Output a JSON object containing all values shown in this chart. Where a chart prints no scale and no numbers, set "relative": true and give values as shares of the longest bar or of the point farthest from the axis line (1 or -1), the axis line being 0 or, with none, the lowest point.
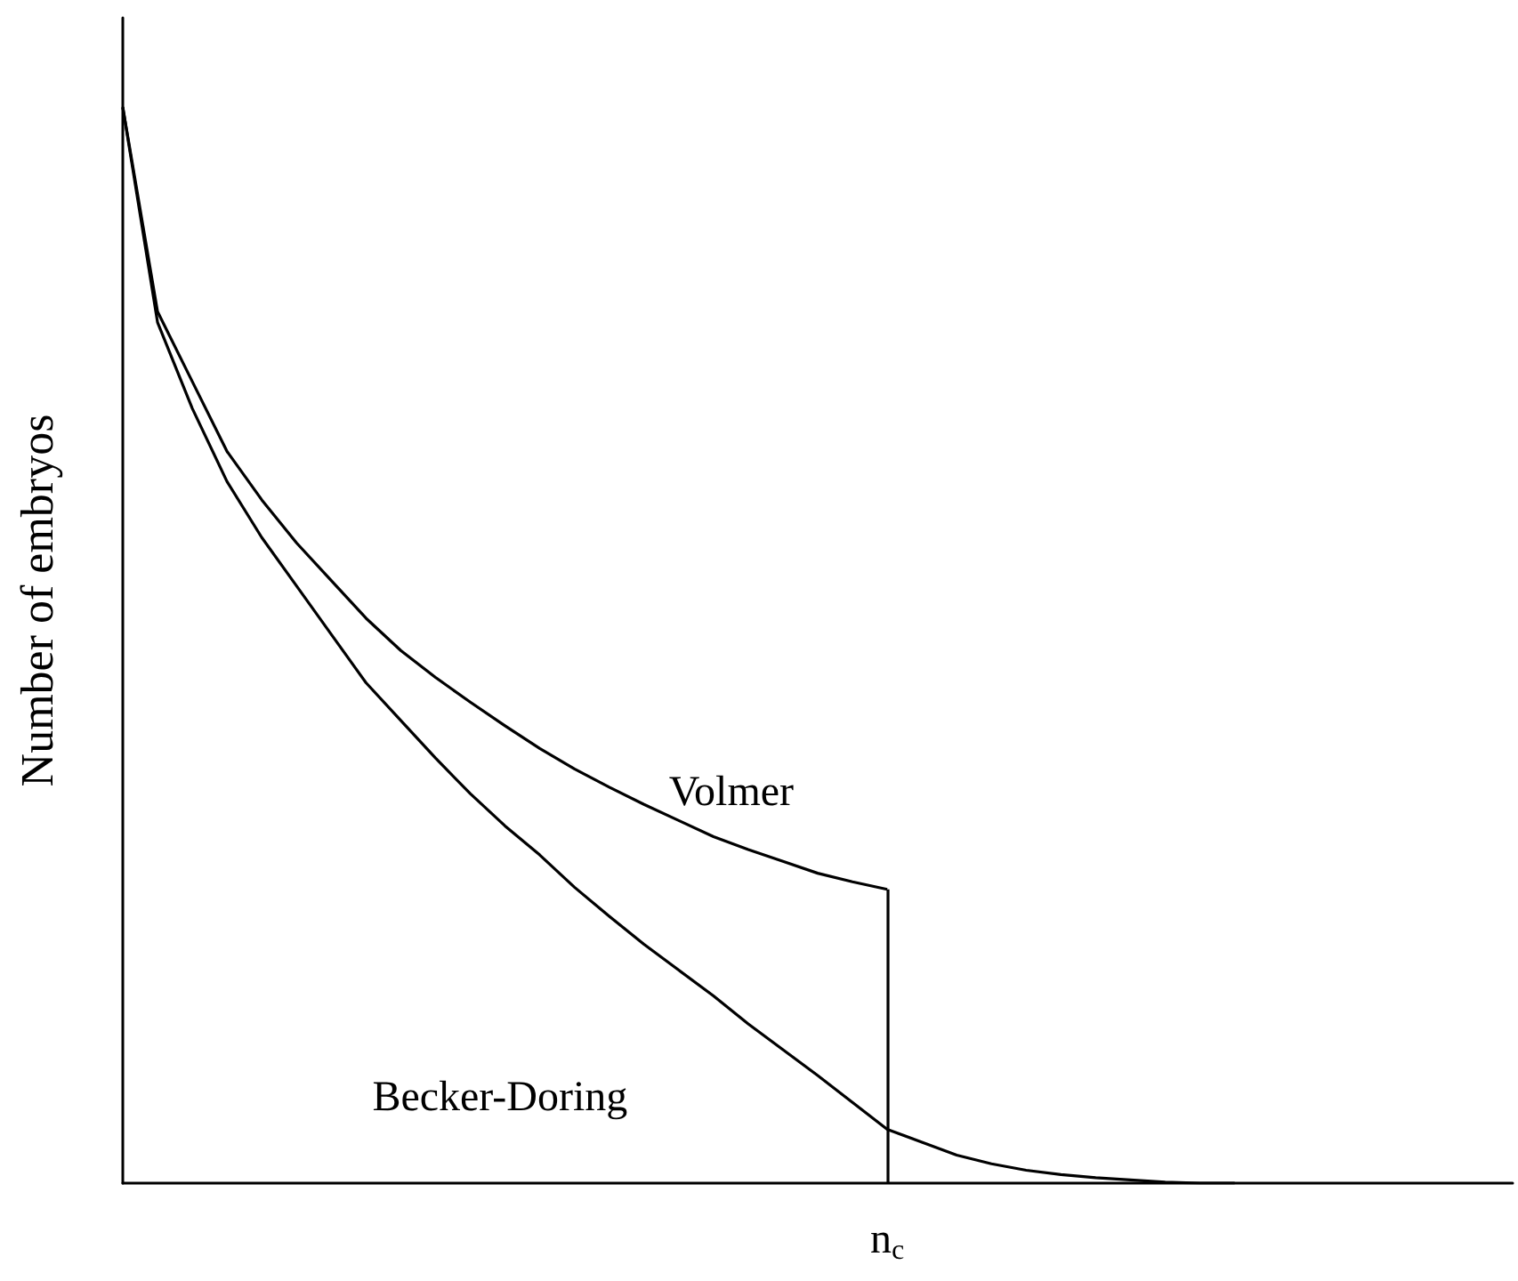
{
  "chart_data": {
    "type": "line",
    "relative": true,
    "ylabel": "Number of embryos",
    "marker": "none",
    "line_style": "solid",
    "grid": false,
    "legend": false,
    "annotations": [
      "n$_{c}$"
    ],
    "categories": [
      null,
      null,
      null,
      null,
      null,
      null,
      null,
      null,
      null,
      null,
      null,
      null,
      null,
      null,
      null,
      null,
      null,
      null,
      null,
      null,
      null,
      null,
      null,
      null,
      null,
      null,
      null,
      null,
      null,
      null,
      null,
      null,
      null,
      null,
      null,
      null,
      null,
      null,
      null,
      null,
      null
    ],
    "series": [
      {
        "name": "Volmer",
        "color": "#000000",
        "values": [
          1,
          0.81,
          0.745,
          0.68,
          0.635,
          0.595,
          0.56,
          0.525,
          0.495,
          0.47,
          0.447,
          0.425,
          0.404,
          0.385,
          0.368,
          0.352,
          0.337,
          0.322,
          0.31,
          0.299,
          0.288,
          0.28,
          0.273,
          null,
          null,
          null,
          null,
          null,
          null,
          null,
          null,
          null,
          null,
          null,
          null,
          null,
          null,
          null,
          null,
          null,
          null
        ]
      },
      {
        "name": "Becker-Doring",
        "color": "#000000",
        "values": [
          1,
          0.8,
          0.72,
          0.652,
          0.6,
          0.555,
          0.51,
          0.465,
          0.43,
          0.395,
          0.362,
          0.332,
          0.305,
          0.275,
          0.248,
          0.222,
          0.198,
          0.174,
          0.148,
          0.124,
          0.1,
          0.075,
          0.05,
          0.038,
          0.026,
          0.018,
          0.012,
          0.008,
          0.005,
          0.003,
          0.001,
          0,
          0,
          null,
          null,
          null,
          null,
          null,
          null,
          null,
          null
        ]
      }
    ]
  }
}
